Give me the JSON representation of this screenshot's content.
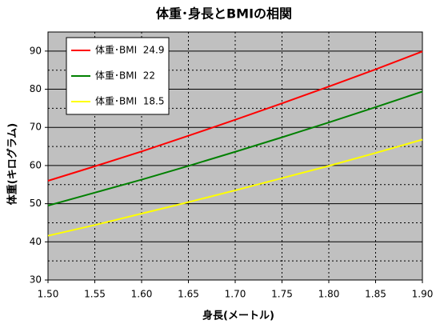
{
  "chart_data": {
    "type": "line",
    "title": "体重･身長とBMIの相関",
    "x_label": "身長(メートル)",
    "y_label": "体重(キログラム)",
    "x": [
      1.5,
      1.55,
      1.6,
      1.65,
      1.7,
      1.75,
      1.8,
      1.85,
      1.9
    ],
    "series": [
      {
        "name": "体重･BMI  24.9",
        "color": "#ff0000",
        "values": [
          56.0,
          59.8,
          63.7,
          67.8,
          72.0,
          76.3,
          80.7,
          85.2,
          89.9
        ]
      },
      {
        "name": "体重･BMI  22",
        "color": "#008000",
        "values": [
          49.5,
          52.9,
          56.3,
          59.9,
          63.6,
          67.4,
          71.3,
          75.3,
          79.4
        ]
      },
      {
        "name": "体重･BMI  18.5",
        "color": "#ffff00",
        "values": [
          41.6,
          44.4,
          47.4,
          50.4,
          53.5,
          56.7,
          59.9,
          63.3,
          66.8
        ]
      }
    ],
    "xlim": [
      1.5,
      1.9
    ],
    "xticks": [
      {
        "value": 1.5,
        "label": "1.50"
      },
      {
        "value": 1.55,
        "label": "1.55"
      },
      {
        "value": 1.6,
        "label": "1.60"
      },
      {
        "value": 1.65,
        "label": "1.65"
      },
      {
        "value": 1.7,
        "label": "1.70"
      },
      {
        "value": 1.75,
        "label": "1.75"
      },
      {
        "value": 1.8,
        "label": "1.80"
      },
      {
        "value": 1.85,
        "label": "1.85"
      },
      {
        "value": 1.9,
        "label": "1.90"
      }
    ],
    "ylim": [
      30,
      95
    ],
    "yticks": [
      30,
      40,
      50,
      60,
      70,
      80,
      90
    ],
    "y_minor_ticks": [
      35,
      45,
      55,
      65,
      75,
      85
    ],
    "grid": true,
    "background": "#c0c0c0",
    "legend": "upper-left"
  }
}
